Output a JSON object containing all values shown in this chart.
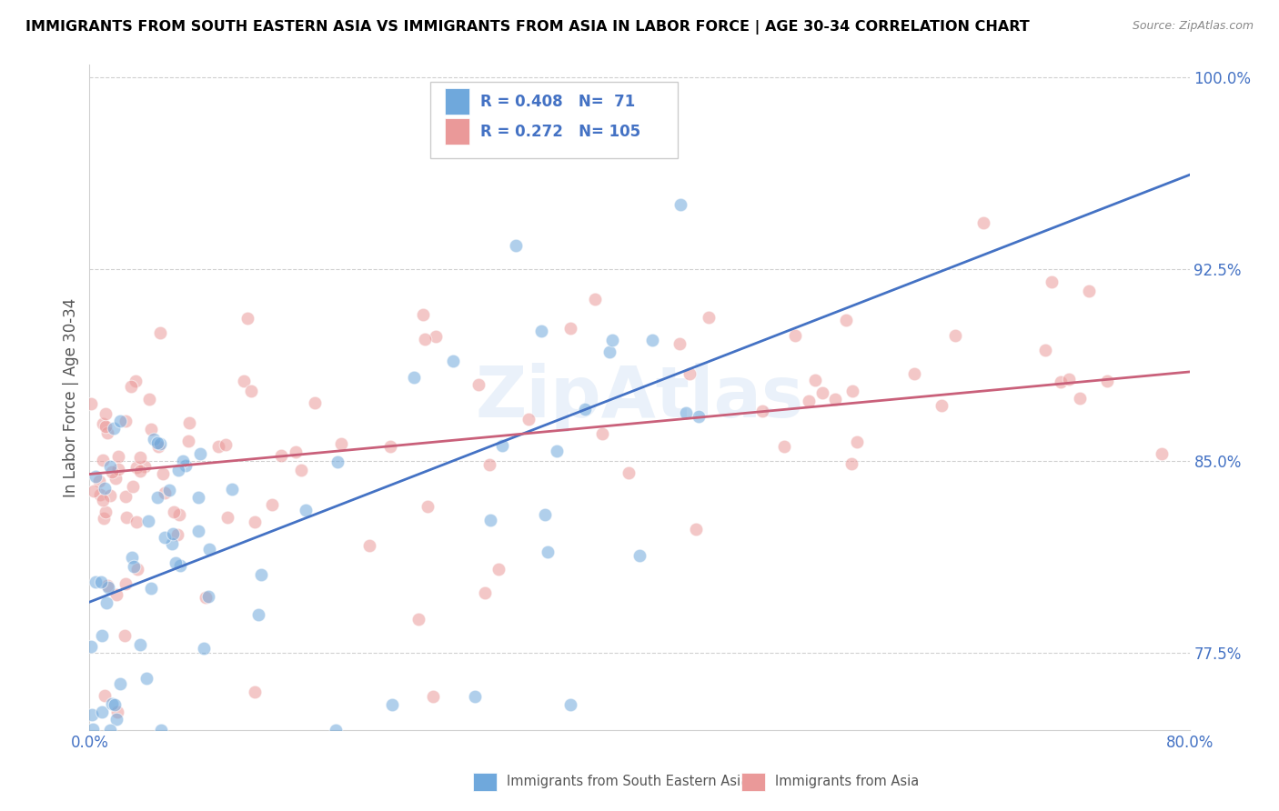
{
  "title": "IMMIGRANTS FROM SOUTH EASTERN ASIA VS IMMIGRANTS FROM ASIA IN LABOR FORCE | AGE 30-34 CORRELATION CHART",
  "source_text": "Source: ZipAtlas.com",
  "ylabel": "In Labor Force | Age 30-34",
  "xlim": [
    0.0,
    0.8
  ],
  "ylim": [
    0.745,
    1.005
  ],
  "yticks": [
    0.775,
    0.85,
    0.925,
    1.0
  ],
  "ytick_labels": [
    "77.5%",
    "85.0%",
    "92.5%",
    "100.0%"
  ],
  "legend_blue_label": "Immigrants from South Eastern Asia",
  "legend_pink_label": "Immigrants from Asia",
  "R_blue": 0.408,
  "N_blue": 71,
  "R_pink": 0.272,
  "N_pink": 105,
  "blue_color": "#6fa8dc",
  "pink_color": "#ea9999",
  "blue_line_color": "#4472c4",
  "pink_line_color": "#c9607a",
  "watermark_text": "ZipAtlas",
  "blue_line_x0": 0.0,
  "blue_line_y0": 0.795,
  "blue_line_x1": 0.8,
  "blue_line_y1": 0.962,
  "pink_line_x0": 0.0,
  "pink_line_y0": 0.845,
  "pink_line_x1": 0.8,
  "pink_line_y1": 0.885
}
